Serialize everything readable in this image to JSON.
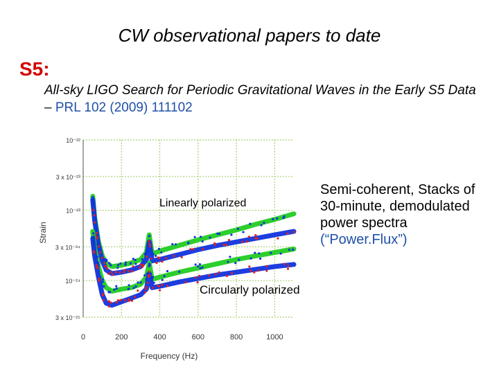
{
  "slide": {
    "title": "CW observational papers to date",
    "heading": "S5:",
    "subtitle_italic": "All-sky LIGO Search for Periodic Gravitational Waves in the Early S5 Data –",
    "subtitle_citation": "PRL 102 (2009) 111102",
    "note_main": "Semi-coherent, Stacks of 30-minute, demodulated power spectra",
    "note_quote": "(“Power.Flux”)"
  },
  "chart_data": {
    "type": "scatter",
    "title": "",
    "xlabel": "Frequency (Hz)",
    "ylabel": "Strain",
    "xlim": [
      0,
      1100
    ],
    "ylim_log10": [
      -24.52,
      -22
    ],
    "x_ticks": [
      0,
      200,
      400,
      600,
      800,
      1000
    ],
    "x_tick_labels": [
      "0",
      "200",
      "400",
      "600",
      "800",
      "1000"
    ],
    "y_ticks_log10": [
      -22,
      -22.52,
      -23,
      -23.52,
      -24,
      -24.52
    ],
    "y_tick_labels": [
      "10⁻²²",
      "3 x 10⁻²³",
      "10⁻²³",
      "3 x 10⁻²⁴",
      "10⁻²⁴",
      "3 x 10⁻²⁵"
    ],
    "annotations": [
      "Linearly polarized",
      "Circularly polarized"
    ],
    "series": [
      {
        "name": "Linearly polarized (upper)",
        "color": "#22cc22",
        "x": [
          50,
          60,
          80,
          100,
          120,
          150,
          200,
          250,
          300,
          330,
          345,
          360,
          400,
          500,
          600,
          700,
          800,
          900,
          1000,
          1100
        ],
        "log10y": [
          -22.8,
          -23.1,
          -23.45,
          -23.65,
          -23.75,
          -23.8,
          -23.78,
          -23.75,
          -23.7,
          -23.6,
          -23.35,
          -23.62,
          -23.58,
          -23.5,
          -23.42,
          -23.35,
          -23.28,
          -23.2,
          -23.13,
          -23.05
        ]
      },
      {
        "name": "Linearly polarized (lower)",
        "color": "#1133dd",
        "x": [
          50,
          60,
          80,
          100,
          120,
          150,
          200,
          250,
          300,
          330,
          345,
          360,
          400,
          500,
          600,
          700,
          800,
          900,
          1000,
          1100
        ],
        "log10y": [
          -22.85,
          -23.15,
          -23.5,
          -23.72,
          -23.85,
          -23.9,
          -23.88,
          -23.85,
          -23.8,
          -23.7,
          -23.45,
          -23.72,
          -23.7,
          -23.63,
          -23.56,
          -23.5,
          -23.45,
          -23.4,
          -23.35,
          -23.3
        ]
      },
      {
        "name": "Circularly polarized (upper)",
        "color": "#22cc22",
        "x": [
          50,
          60,
          80,
          100,
          120,
          150,
          200,
          250,
          300,
          330,
          345,
          360,
          400,
          500,
          600,
          700,
          800,
          900,
          1000,
          1100
        ],
        "log10y": [
          -23.3,
          -23.55,
          -23.8,
          -24.0,
          -24.1,
          -24.15,
          -24.12,
          -24.1,
          -24.05,
          -23.95,
          -23.75,
          -23.98,
          -23.95,
          -23.88,
          -23.82,
          -23.76,
          -23.7,
          -23.65,
          -23.6,
          -23.55
        ]
      },
      {
        "name": "Circularly polarized (lower)",
        "color": "#1133dd",
        "x": [
          50,
          60,
          80,
          100,
          120,
          150,
          200,
          250,
          300,
          330,
          345,
          360,
          400,
          500,
          600,
          700,
          800,
          900,
          1000,
          1100
        ],
        "log10y": [
          -23.4,
          -23.65,
          -23.95,
          -24.2,
          -24.32,
          -24.35,
          -24.3,
          -24.25,
          -24.2,
          -24.12,
          -23.9,
          -24.1,
          -24.08,
          -24.02,
          -23.97,
          -23.92,
          -23.88,
          -23.84,
          -23.8,
          -23.77
        ]
      }
    ]
  }
}
